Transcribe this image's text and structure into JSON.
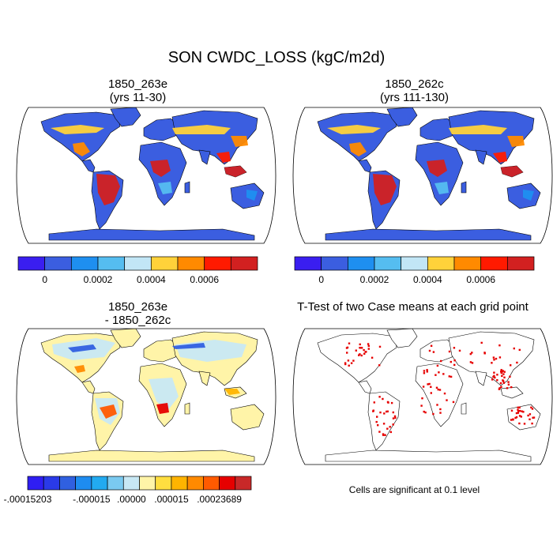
{
  "title": "SON CWDC_LOSS (kgC/m2d)",
  "panels": [
    {
      "title_line1": "1850_263e",
      "title_line2": "(yrs 11-30)"
    },
    {
      "title_line1": "1850_262c",
      "title_line2": "(yrs 111-130)"
    },
    {
      "title_line1": "1850_263e",
      "title_line2": "- 1850_262c"
    },
    {
      "title_line1": "T-Test of two Case means at each grid point",
      "title_line2": ""
    }
  ],
  "colorbar_abs": {
    "colors": [
      "#3a1ef0",
      "#3b5ee0",
      "#1e8ff0",
      "#55bdf0",
      "#c2e6f6",
      "#ffd23a",
      "#ff8a00",
      "#ff1a00",
      "#d22020"
    ],
    "labels": [
      "0",
      "0.0002",
      "0.0004",
      "0.0006"
    ]
  },
  "colorbar_diff": {
    "colors": [
      "#2f1ef2",
      "#2a3ae8",
      "#3060e0",
      "#1e8cf0",
      "#22aaf0",
      "#7acaf0",
      "#c8e8f4",
      "#fff4a8",
      "#ffde40",
      "#ffb400",
      "#ff8a00",
      "#ff5a00",
      "#e60000",
      "#c82828"
    ],
    "labels": [
      "-.00015203",
      "-.000015",
      ".00000",
      ".000015",
      ".00023689"
    ]
  },
  "note": "Cells are significant at 0.1 level"
}
